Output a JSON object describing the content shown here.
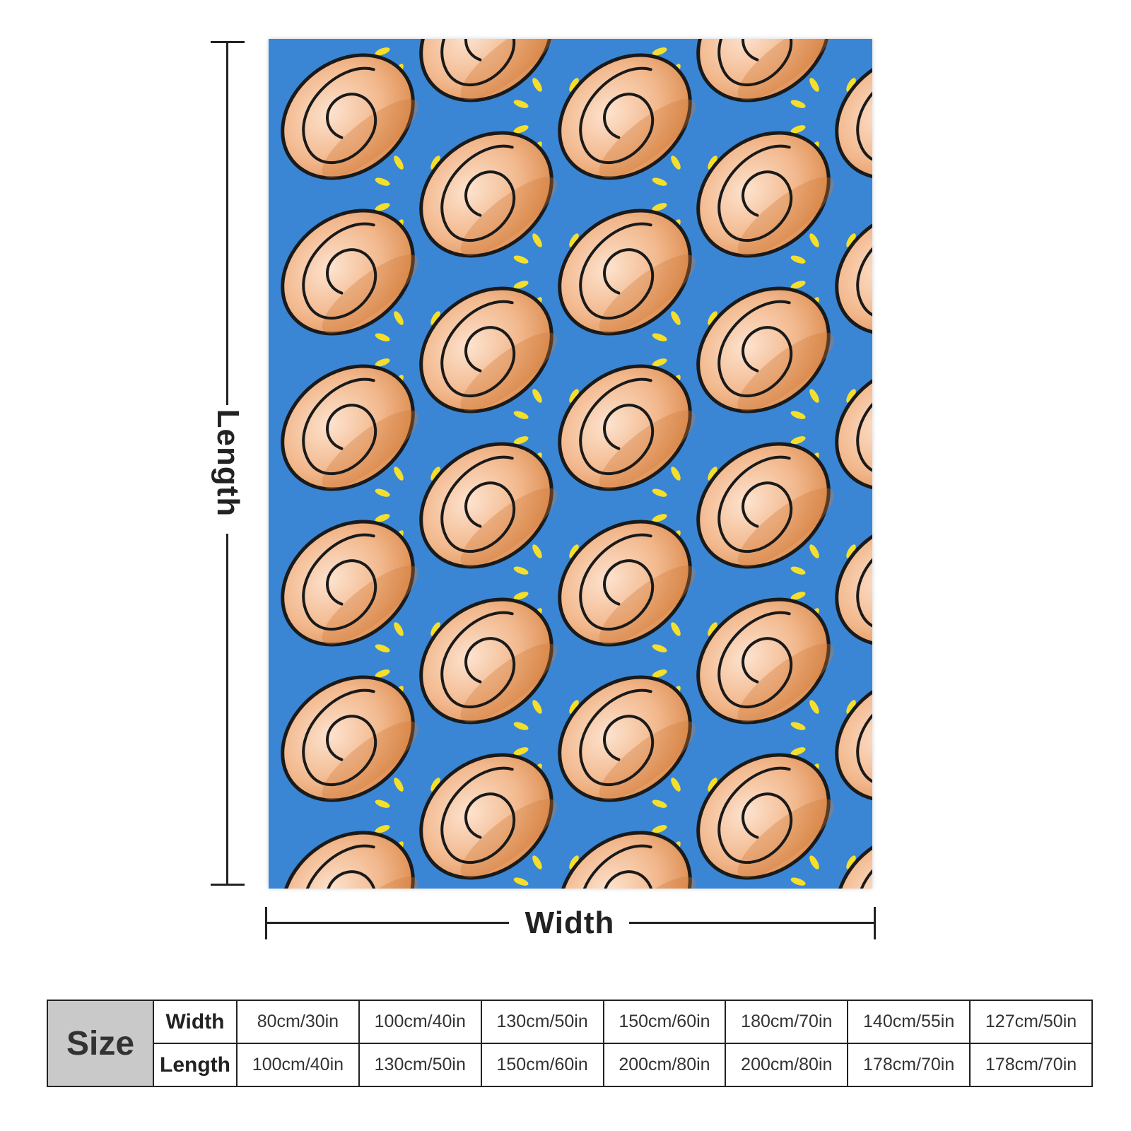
{
  "product": {
    "pattern": {
      "background_color": "#3a86d4",
      "roll_color": "#f0b288",
      "roll_dark_color": "#d07a3a",
      "outline_color": "#1a1a1a",
      "dash_color": "#f6df2a"
    }
  },
  "dimensions": {
    "length_label": "Length",
    "width_label": "Width"
  },
  "size_table": {
    "header": "Size",
    "width_row_label": "Width",
    "length_row_label": "Length",
    "widths": [
      "80cm/30in",
      "100cm/40in",
      "130cm/50in",
      "150cm/60in",
      "180cm/70in",
      "140cm/55in",
      "127cm/50in"
    ],
    "lengths": [
      "100cm/40in",
      "130cm/50in",
      "150cm/60in",
      "200cm/80in",
      "200cm/80in",
      "178cm/70in",
      "178cm/70in"
    ]
  }
}
